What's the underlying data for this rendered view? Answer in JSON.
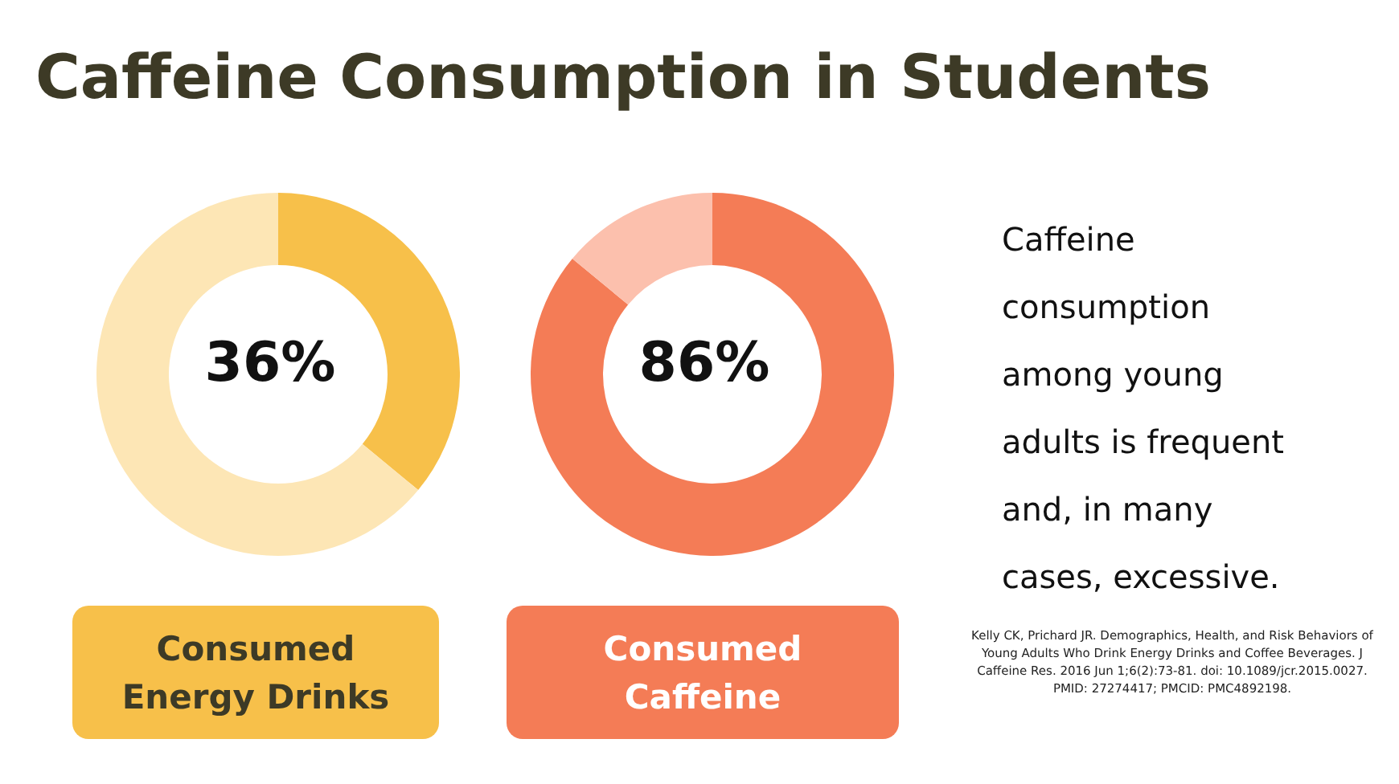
{
  "chart_data": [
    {
      "type": "donut",
      "title": "Caffeine Consumption in Students",
      "xlabel": "Consumed Energy Drinks",
      "categories": [
        null,
        null
      ],
      "values": [
        36,
        64
      ],
      "colors": [
        "#f7c04a",
        "#fde6b5"
      ],
      "annotations": [
        "36%"
      ]
    },
    {
      "type": "donut",
      "xlabel": "Consumed Caffeine",
      "categories": [
        null,
        null
      ],
      "values": [
        86,
        14
      ],
      "colors": [
        "#f47c56",
        "#fcc0ad"
      ],
      "annotations": [
        "86%"
      ]
    },
    {
      "type": "other",
      "annotations": [
        "Caffeine consumption among young adults is frequent and, in many cases, excessive.",
        "Kelly CK, Prichard JR. Demographics, Health, and Risk Behaviors of Young Adults Who Drink Energy Drinks and Coffee Beverages. J Caffeine Res. 2016 Jun 1;6(2):73-81. doi: 10.1089/jcr.2015.0027. PMID: 27274417; PMCID: PMC4892198."
      ]
    }
  ]
}
